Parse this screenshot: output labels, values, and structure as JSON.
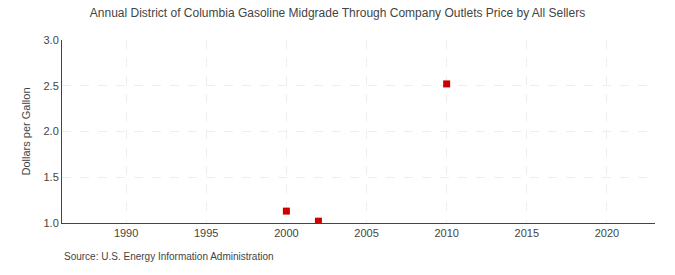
{
  "chart_data": {
    "type": "scatter",
    "title": "Annual District of Columbia Gasoline Midgrade Through Company Outlets Price by All Sellers",
    "y_label": "Dollars per Gallon",
    "annotations": [
      "Source: U.S. Energy Information Administration"
    ],
    "x": [
      2000,
      2002,
      2010
    ],
    "values": [
      1.13,
      1.02,
      2.52
    ],
    "color": "#cc0000",
    "marker": "square",
    "xlim": [
      1986,
      2023
    ],
    "xticks": [
      1990,
      1995,
      2000,
      2005,
      2010,
      2015,
      2020
    ],
    "ylim": [
      1.0,
      3.0
    ],
    "yticks": [
      {
        "value": 1.0,
        "label": "1.0"
      },
      1.5,
      {
        "value": 2.0,
        "label": "2.0"
      },
      2.5,
      {
        "value": 3.0,
        "label": "3.0"
      }
    ],
    "grid": true
  }
}
